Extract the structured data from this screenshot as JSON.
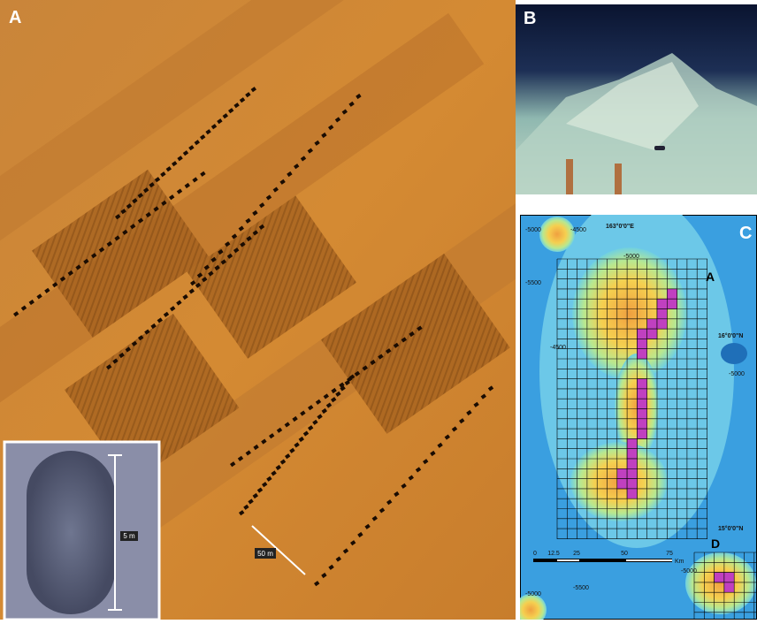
{
  "panels": {
    "a": {
      "label": "A",
      "inset_scale": "5 m",
      "scale": "50 m"
    },
    "b": {
      "label": "B"
    },
    "c": {
      "label": "C",
      "longitude": "163°0'0\"E",
      "latitude_1": "16°0'0\"N",
      "latitude_2": "15°0'0\"N",
      "area_a": "A",
      "area_d": "D",
      "scale_ticks": [
        "0",
        "12.5",
        "25",
        "50",
        "75"
      ],
      "scale_unit": "Km",
      "contours": [
        "-5000",
        "-4500",
        "-5000",
        "-5500",
        "-4500",
        "-5000",
        "-5000",
        "-5500",
        "-5000"
      ]
    }
  }
}
